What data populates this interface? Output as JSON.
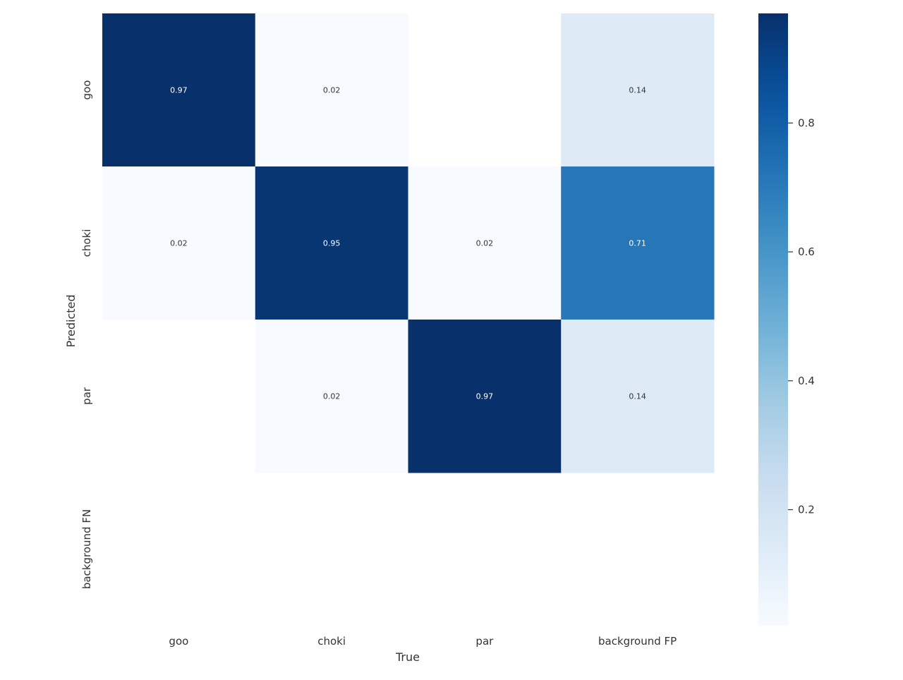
{
  "chart_data": {
    "type": "heatmap",
    "title": "",
    "xlabel": "True",
    "ylabel": "Predicted",
    "x_categories": [
      "goo",
      "choki",
      "par",
      "background FP"
    ],
    "y_categories": [
      "goo",
      "choki",
      "par",
      "background FN"
    ],
    "values": [
      [
        0.97,
        0.02,
        null,
        0.14
      ],
      [
        0.02,
        0.95,
        0.02,
        0.71
      ],
      [
        null,
        0.02,
        0.97,
        0.14
      ],
      [
        null,
        null,
        null,
        null
      ]
    ],
    "colormap": "Blues",
    "vmin": 0.02,
    "vmax": 0.97,
    "colorbar_ticks": [
      0.2,
      0.4,
      0.6,
      0.8
    ],
    "colorbar_tick_labels": [
      "0.2",
      "0.4",
      "0.6",
      "0.8"
    ],
    "colormap_stops": [
      "#f7fbff",
      "#deebf7",
      "#c6dbef",
      "#9ecae1",
      "#6baed6",
      "#4292c6",
      "#2171b5",
      "#08519c",
      "#08306b"
    ]
  }
}
